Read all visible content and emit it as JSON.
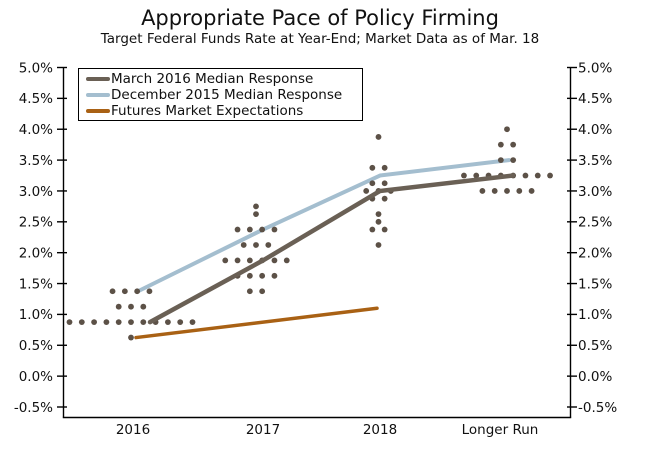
{
  "title": "Appropriate Pace of Policy Firming",
  "subtitle": "Target Federal Funds Rate at Year-End; Market Data as of Mar. 18",
  "legend": {
    "position": "upper-left",
    "items": [
      {
        "label": "March 2016 Median Response",
        "color": "#6a6055"
      },
      {
        "label": "December 2015 Median Response",
        "color": "#a4becf"
      },
      {
        "label": "Futures Market Expectations",
        "color": "#a96114"
      }
    ]
  },
  "colors": {
    "march_line": "#6a6055",
    "december_line": "#a4becf",
    "futures_line": "#a96114",
    "dots": "#5c5147",
    "axis": "#000000",
    "text": "#111111",
    "background": "#ffffff"
  },
  "chart_data": {
    "type": "scatter",
    "title": "Appropriate Pace of Policy Firming",
    "subtitle": "Target Federal Funds Rate at Year-End; Market Data as of Mar. 18",
    "categories": [
      "2016",
      "2017",
      "2018",
      "Longer Run"
    ],
    "ylim": [
      -0.5,
      5.0
    ],
    "y_tick_step": 0.5,
    "y_tick_labels": [
      "5.0%",
      "4.5%",
      "4.0%",
      "3.5%",
      "3.0%",
      "2.5%",
      "2.0%",
      "1.5%",
      "1.0%",
      "0.5%",
      "0.0%",
      "-0.5%"
    ],
    "axis_sides": "left-and-right",
    "grid": false,
    "legend_position": "upper left",
    "series": [
      {
        "name": "March 2016 Median Response",
        "type": "line",
        "categories": [
          "2016",
          "2017",
          "2018",
          "Longer Run"
        ],
        "values": [
          0.875,
          1.875,
          3.0,
          3.25
        ]
      },
      {
        "name": "December 2015 Median Response",
        "type": "line",
        "categories": [
          "2016",
          "2017",
          "2018",
          "Longer Run"
        ],
        "values": [
          1.375,
          2.375,
          3.25,
          3.5
        ]
      },
      {
        "name": "Futures Market Expectations",
        "type": "line",
        "categories": [
          "2016",
          "2018"
        ],
        "values": [
          0.625,
          1.1
        ]
      }
    ],
    "dot_plot": [
      {
        "category": "2016",
        "dots": [
          {
            "rate": 1.375,
            "count": 4
          },
          {
            "rate": 1.125,
            "count": 3
          },
          {
            "rate": 0.875,
            "count": 11
          },
          {
            "rate": 0.625,
            "count": 1
          }
        ]
      },
      {
        "category": "2017",
        "dots": [
          {
            "rate": 2.75,
            "count": 1
          },
          {
            "rate": 2.625,
            "count": 1
          },
          {
            "rate": 2.375,
            "count": 4
          },
          {
            "rate": 2.125,
            "count": 3
          },
          {
            "rate": 1.875,
            "count": 6
          },
          {
            "rate": 1.625,
            "count": 4
          },
          {
            "rate": 1.375,
            "count": 2
          }
        ]
      },
      {
        "category": "2018",
        "dots": [
          {
            "rate": 3.875,
            "count": 1
          },
          {
            "rate": 3.375,
            "count": 2
          },
          {
            "rate": 3.125,
            "count": 2
          },
          {
            "rate": 3.0,
            "count": 3
          },
          {
            "rate": 2.875,
            "count": 2
          },
          {
            "rate": 2.625,
            "count": 1
          },
          {
            "rate": 2.5,
            "count": 1
          },
          {
            "rate": 2.375,
            "count": 2
          },
          {
            "rate": 2.125,
            "count": 1
          }
        ]
      },
      {
        "category": "Longer Run",
        "dots": [
          {
            "rate": 4.0,
            "count": 1
          },
          {
            "rate": 3.75,
            "count": 2
          },
          {
            "rate": 3.5,
            "count": 2
          },
          {
            "rate": 3.25,
            "count": 8
          },
          {
            "rate": 3.0,
            "count": 5
          }
        ]
      }
    ]
  }
}
